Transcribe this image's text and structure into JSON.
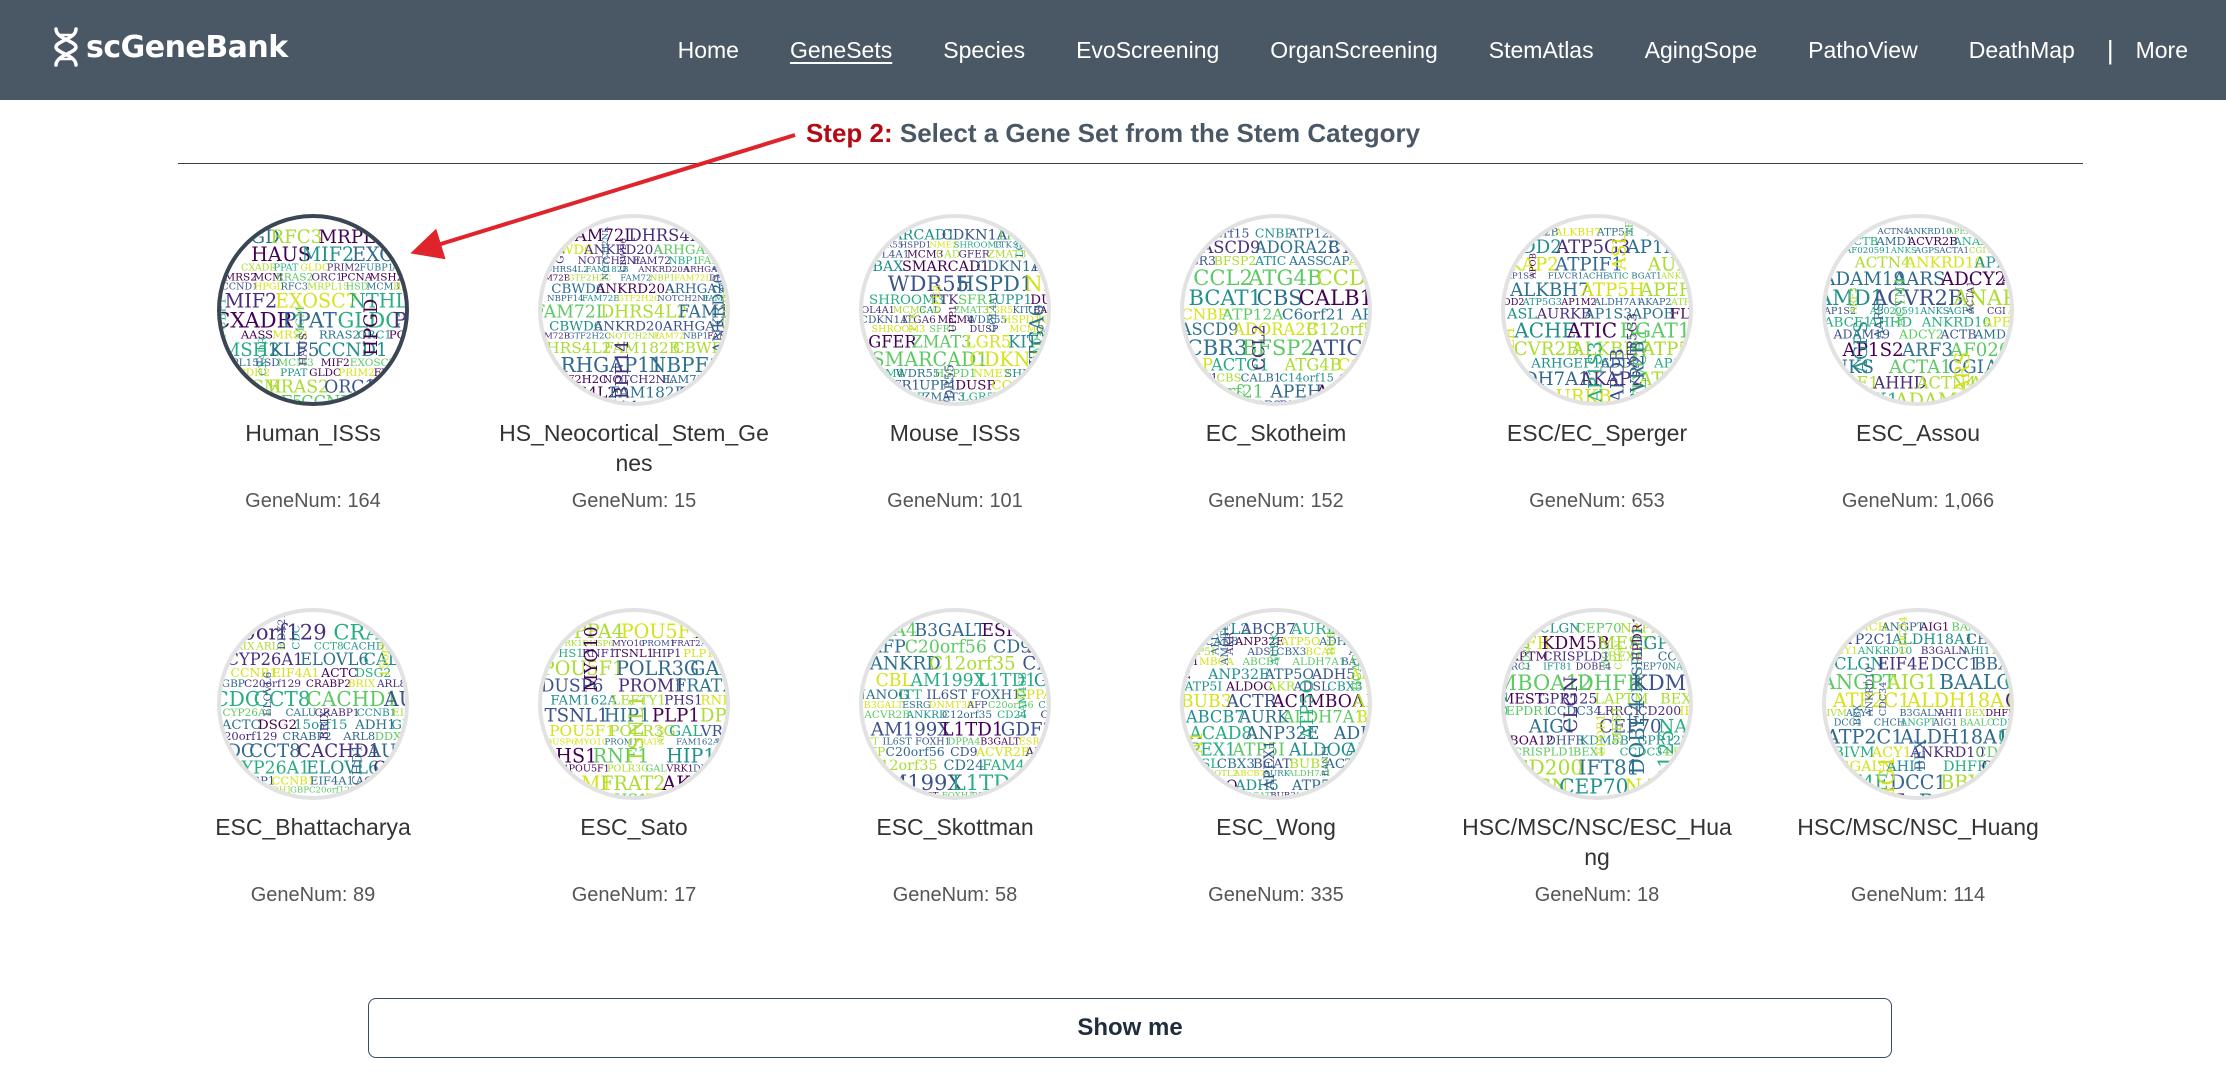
{
  "brand": {
    "name": "scGeneBank",
    "logo_icon": "dna-icon"
  },
  "nav": {
    "items": [
      {
        "label": "Home",
        "active": false
      },
      {
        "label": "GeneSets",
        "active": true
      },
      {
        "label": "Species",
        "active": false
      },
      {
        "label": "EvoScreening",
        "active": false
      },
      {
        "label": "OrganScreening",
        "active": false
      },
      {
        "label": "StemAtlas",
        "active": false
      },
      {
        "label": "AgingSope",
        "active": false
      },
      {
        "label": "PathoView",
        "active": false
      },
      {
        "label": "DeathMap",
        "active": false
      }
    ],
    "separator": "|",
    "more_label": "More"
  },
  "step": {
    "number_label": "Step 2:",
    "text": "Select a Gene Set from the Stem Category"
  },
  "colors": {
    "navbar": "#4a5866",
    "step_number": "#b30a14",
    "arrow": "#e0242b",
    "selected_ring": "#3b4654"
  },
  "genesets": [
    {
      "name": "Human_ISSs",
      "count_label": "GeneNum: 164",
      "selected": true,
      "words": [
        "HPGD",
        "RFC3",
        "MRPL15",
        "HSD",
        "MCM3",
        "HAUS",
        "MIF2",
        "EXOSC7",
        "NTHL1",
        "IMPDH2",
        "CXADR",
        "PPAT",
        "GLDC",
        "PRIM2",
        "FUBP1",
        "AASS",
        "MRS2",
        "MCM",
        "RRAS2",
        "ORC1",
        "PCNA",
        "MSH2",
        "KLF5",
        "CCND1"
      ]
    },
    {
      "name": "HS_Neocortical_Stem_Genes",
      "count_label": "GeneNum: 15",
      "selected": false,
      "words": [
        "NBP1",
        "FAM72L",
        "DHRS4L2",
        "FAM182B",
        "CBWD6",
        "ANKRD20A",
        "ARHGAP11",
        "NBPF14",
        "FAM72B",
        "GTF2H2C",
        "NOTCH2NL",
        "FAM72"
      ]
    },
    {
      "name": "Mouse_ISSs",
      "count_label": "GeneNum: 101",
      "selected": false,
      "words": [
        "SMARCAD1",
        "CDKN1A",
        "ITGA6",
        "MCM4",
        "WDR55",
        "HSPD1",
        "NME2",
        "SHROOM3",
        "TTK",
        "SFR1",
        "UPP1",
        "DUSP",
        "COL4A1",
        "MCM3",
        "CAD",
        "GFER",
        "ZMAT3",
        "LGR5",
        "KIT",
        "BAX"
      ]
    },
    {
      "name": "EC_Skotheim",
      "count_label": "GeneNum: 152",
      "selected": false,
      "words": [
        "C14orf15",
        "CNBP",
        "ATP12A",
        "C6orf21",
        "APEH",
        "ASCD9",
        "ADORA2B",
        "C12orf5",
        "CBR3",
        "BFSP2",
        "ATIC",
        "AASS",
        "CAP",
        "ACTG1",
        "CCL2",
        "ATG4B",
        "CCDC80",
        "BCAT1",
        "CBS",
        "CALB1"
      ]
    },
    {
      "name": "ESC/EC_Sperger",
      "count_label": "GeneNum: 653",
      "selected": false,
      "words": [
        "ACVR2B",
        "ALKBH7",
        "ATP5H",
        "APEH",
        "ARHGEF16",
        "ADD2",
        "ATP5G3",
        "AP1M2",
        "ALDH7A1",
        "AKAP2",
        "ATPIF1",
        "ASL",
        "AURKB",
        "AP1S3",
        "APOB",
        "FLVCR1",
        "ACHE",
        "ATIC",
        "BGAT1",
        "ANKS6"
      ]
    },
    {
      "name": "ESC_Assou",
      "count_label": "GeneNum: 1,066",
      "selected": false,
      "words": [
        "ABCE1",
        "AHHD",
        "ACTN4",
        "ANKRD10",
        "APEX1",
        "ADAM19",
        "AARS",
        "ADCY2",
        "ACTB",
        "AMD1",
        "ACVR2B",
        "ANAPC",
        "AP1S2",
        "ARF3",
        "AF020591",
        "ANKS",
        "AGPS",
        "ACTA1",
        "CGI",
        "AKAP1"
      ]
    },
    {
      "name": "ESC_Bhattacharya",
      "count_label": "GeneNum: 89",
      "selected": false,
      "words": [
        "C20orf129",
        "CRABP2",
        "BRIX",
        "ARL8",
        "DDX21",
        "CDC",
        "CCT8",
        "CACHD1",
        "AURKB",
        "CYP26A1",
        "ELOVL6",
        "CALU",
        "CRABP1",
        "CCNB1",
        "EIF4A1",
        "ACTC",
        "DSG2",
        "15orf15",
        "ADH1",
        "GBP"
      ]
    },
    {
      "name": "ESC_Sato",
      "count_label": "GeneNum: 17",
      "selected": false,
      "words": [
        "PLP1",
        "DPPA4",
        "POU5F1",
        "POLR3G",
        "GAL",
        "VRK1",
        "DUSP6",
        "MYO10",
        "PROM1",
        "FRAT2",
        "AK3",
        "FAM162A",
        "LEFTY1",
        "PHS1",
        "RNF1",
        "TSNL1",
        "HIP1"
      ]
    },
    {
      "name": "ESC_Skottman",
      "count_label": "GeneNum: 58",
      "selected": false,
      "words": [
        "DPPA4",
        "B3GALT",
        "ESRG",
        "DNMT3B",
        "AFP",
        "C20orf56",
        "CD9",
        "ACVR2B",
        "ANKRD",
        "C12orf35",
        "CD24",
        "FAM46B",
        "CBL",
        "AM199X",
        "L1TD1",
        "GDF3",
        "NANOG",
        "ITT",
        "IL6ST",
        "FOXH1"
      ]
    },
    {
      "name": "ESC_Wong",
      "count_label": "GeneNum: 335",
      "selected": false,
      "words": [
        "AMOTL2",
        "ABCB7",
        "AURK",
        "ALDH7A1",
        "BANF1",
        "ACAD8",
        "ANP32E",
        "ATP5O",
        "ADH5",
        "APEX1",
        "ATP5I",
        "ALDOC",
        "AKR",
        "ADSL",
        "CBX3",
        "BCAT",
        "BUB3",
        "ACTR",
        "AC1",
        "MBOA"
      ]
    },
    {
      "name": "HSC/MSC/NSC/ESC_Huang",
      "count_label": "GeneNum: 18",
      "selected": false,
      "words": [
        "AIG1",
        "CLGN",
        "CEP70",
        "NAPIL",
        "MBOA12",
        "DHFR",
        "KDM5B",
        "MEST",
        "GPR125",
        "LAPTM",
        "CRISPLD1",
        "BEX1",
        "EPDR1",
        "CCDC34",
        "LRRC1",
        "CD200",
        "IFT81",
        "DOBE4"
      ]
    },
    {
      "name": "HSC/MSC/NSC_Huang",
      "count_label": "GeneNum: 114",
      "selected": false,
      "words": [
        "BBX",
        "CHCH",
        "ANGPT",
        "AIG1",
        "BAALC",
        "CD200",
        "ATP2C1",
        "ALDH18A1",
        "CEP70",
        "BIVM",
        "ACY1",
        "ANKRD10",
        "CDC34",
        "B3GALN",
        "AHI1",
        "BEX",
        "DHFR",
        "CLGN",
        "EIF4E",
        "DCC1"
      ]
    }
  ],
  "actions": {
    "show_label": "Show me"
  }
}
